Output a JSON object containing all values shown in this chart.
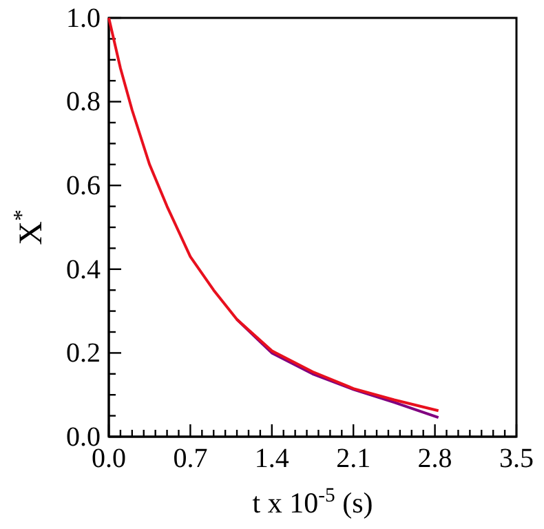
{
  "chart_data": {
    "type": "line",
    "xlabel": "t x 10$^{-5}$ (s)",
    "ylabel": "X$^{*}$",
    "xlim": [
      0,
      3.5
    ],
    "ylim": [
      0,
      1
    ],
    "xticks": [
      {
        "value": 0,
        "label": "0.0"
      },
      {
        "value": 0.1,
        "label": null
      },
      {
        "value": 0.2,
        "label": null
      },
      {
        "value": 0.3,
        "label": null
      },
      {
        "value": 0.4,
        "label": null
      },
      {
        "value": 0.5,
        "label": null
      },
      {
        "value": 0.6,
        "label": null
      },
      {
        "value": 0.7,
        "label": "0.7"
      },
      {
        "value": 0.8,
        "label": null
      },
      {
        "value": 0.9,
        "label": null
      },
      {
        "value": 1.0,
        "label": null
      },
      {
        "value": 1.1,
        "label": null
      },
      {
        "value": 1.2,
        "label": null
      },
      {
        "value": 1.3,
        "label": null
      },
      {
        "value": 1.4,
        "label": "1.4"
      },
      {
        "value": 1.5,
        "label": null
      },
      {
        "value": 1.6,
        "label": null
      },
      {
        "value": 1.7,
        "label": null
      },
      {
        "value": 1.8,
        "label": null
      },
      {
        "value": 1.9,
        "label": null
      },
      {
        "value": 2.0,
        "label": null
      },
      {
        "value": 2.1,
        "label": "2.1"
      },
      {
        "value": 2.2,
        "label": null
      },
      {
        "value": 2.3,
        "label": null
      },
      {
        "value": 2.4,
        "label": null
      },
      {
        "value": 2.5,
        "label": null
      },
      {
        "value": 2.6,
        "label": null
      },
      {
        "value": 2.7,
        "label": null
      },
      {
        "value": 2.8,
        "label": "2.8"
      },
      {
        "value": 2.9,
        "label": null
      },
      {
        "value": 3.0,
        "label": null
      },
      {
        "value": 3.1,
        "label": null
      },
      {
        "value": 3.2,
        "label": null
      },
      {
        "value": 3.3,
        "label": null
      },
      {
        "value": 3.4,
        "label": null
      },
      {
        "value": 3.5,
        "label": "3.5"
      }
    ],
    "yticks": [
      {
        "value": 0,
        "label": "0.0"
      },
      {
        "value": 0.05,
        "label": null
      },
      {
        "value": 0.1,
        "label": null
      },
      {
        "value": 0.15,
        "label": null
      },
      {
        "value": 0.2,
        "label": "0.2"
      },
      {
        "value": 0.25,
        "label": null
      },
      {
        "value": 0.3,
        "label": null
      },
      {
        "value": 0.35,
        "label": null
      },
      {
        "value": 0.4,
        "label": "0.4"
      },
      {
        "value": 0.45,
        "label": null
      },
      {
        "value": 0.5,
        "label": null
      },
      {
        "value": 0.55,
        "label": null
      },
      {
        "value": 0.6,
        "label": "0.6"
      },
      {
        "value": 0.65,
        "label": null
      },
      {
        "value": 0.7,
        "label": null
      },
      {
        "value": 0.75,
        "label": null
      },
      {
        "value": 0.8,
        "label": "0.8"
      },
      {
        "value": 0.85,
        "label": null
      },
      {
        "value": 0.9,
        "label": null
      },
      {
        "value": 0.95,
        "label": null
      },
      {
        "value": 1.0,
        "label": "1.0"
      }
    ],
    "grid": false,
    "marker": "none",
    "line_style": "solid",
    "x": [
      0,
      0.1,
      0.2,
      0.35,
      0.5,
      0.7,
      0.9,
      1.1,
      1.4,
      1.75,
      2.1,
      2.45,
      2.83
    ],
    "series": [
      {
        "color": "#800080",
        "values": [
          null,
          null,
          null,
          null,
          null,
          null,
          null,
          0.28,
          0.2,
          0.15,
          0.113,
          0.082,
          0.046
        ]
      },
      {
        "color": "#e8101e",
        "values": [
          1.0,
          0.88,
          0.78,
          0.65,
          0.55,
          0.43,
          0.35,
          0.28,
          0.205,
          0.155,
          0.115,
          0.088,
          0.062
        ]
      }
    ]
  }
}
